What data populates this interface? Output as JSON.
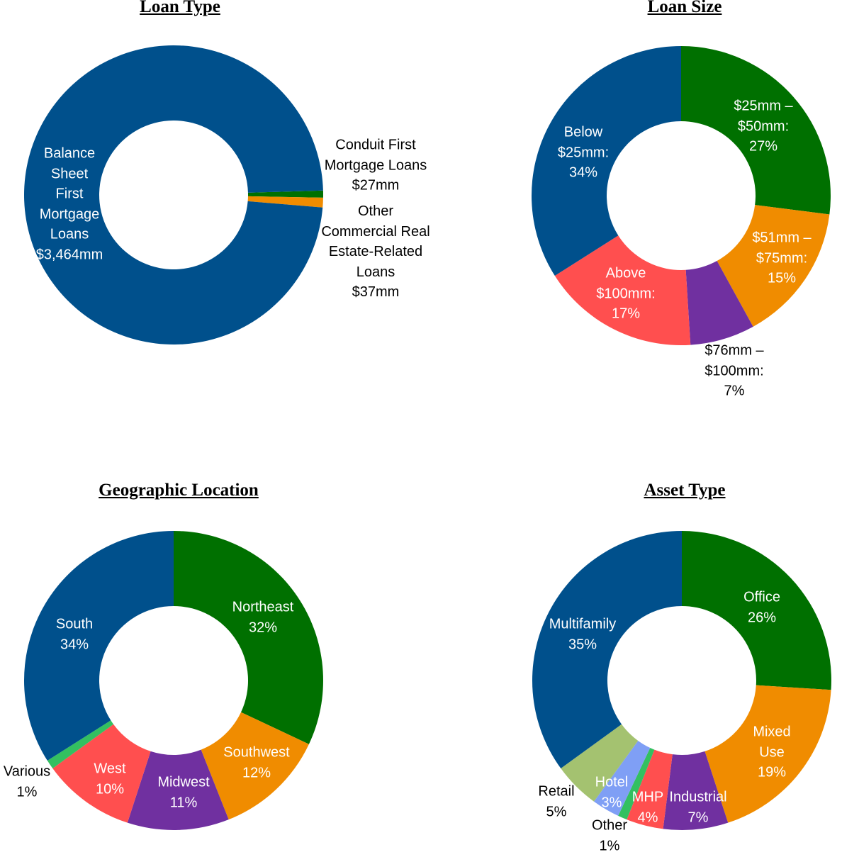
{
  "chart_data": [
    {
      "type": "pie",
      "donut": true,
      "title": "Loan Type",
      "slices": [
        {
          "name": "Conduit First Mortgage Loans",
          "label": "Conduit First\nMortgage Loans\n$27mm",
          "value": 27,
          "color": "#007000",
          "label_color": "#000000"
        },
        {
          "name": "Other Commercial Real Estate-Related Loans",
          "label": "Other\nCommercial Real\nEstate-Related\nLoans\n$37mm",
          "value": 37,
          "color": "#F08C00",
          "label_color": "#000000"
        },
        {
          "name": "Balance Sheet First Mortgage Loans",
          "label": "Balance\nSheet\nFirst\nMortgage\nLoans\n$3,464mm",
          "value": 3464,
          "color": "#00508C",
          "label_color": "#FFFFFF"
        }
      ]
    },
    {
      "type": "pie",
      "donut": true,
      "title": "Loan Size",
      "slices": [
        {
          "name": "$25mm – $50mm",
          "label": "$25mm –\n$50mm:\n27%",
          "value": 27,
          "color": "#007000",
          "label_color": "#FFFFFF"
        },
        {
          "name": "$51mm – $75mm",
          "label": "$51mm –\n$75mm:\n15%",
          "value": 15,
          "color": "#F08C00",
          "label_color": "#FFFFFF"
        },
        {
          "name": "$76mm – $100mm",
          "label": "$76mm –\n$100mm:\n7%",
          "value": 7,
          "color": "#7030A0",
          "label_color": "#000000"
        },
        {
          "name": "Above $100mm",
          "label": "Above\n$100mm:\n17%",
          "value": 17,
          "color": "#FF4F4F",
          "label_color": "#FFFFFF"
        },
        {
          "name": "Below $25mm",
          "label": "Below\n$25mm:\n34%",
          "value": 34,
          "color": "#00508C",
          "label_color": "#FFFFFF"
        }
      ]
    },
    {
      "type": "pie",
      "donut": true,
      "title": "Geographic Location",
      "slices": [
        {
          "name": "Northeast",
          "label": "Northeast\n32%",
          "value": 32,
          "color": "#007000",
          "label_color": "#FFFFFF"
        },
        {
          "name": "Southwest",
          "label": "Southwest\n12%",
          "value": 12,
          "color": "#F08C00",
          "label_color": "#FFFFFF"
        },
        {
          "name": "Midwest",
          "label": "Midwest\n11%",
          "value": 11,
          "color": "#7030A0",
          "label_color": "#FFFFFF"
        },
        {
          "name": "West",
          "label": "West\n10%",
          "value": 10,
          "color": "#FF4F4F",
          "label_color": "#FFFFFF"
        },
        {
          "name": "Various",
          "label": "Various\n1%",
          "value": 1,
          "color": "#33C060",
          "label_color": "#000000"
        },
        {
          "name": "South",
          "label": "South\n34%",
          "value": 34,
          "color": "#00508C",
          "label_color": "#FFFFFF"
        }
      ]
    },
    {
      "type": "pie",
      "donut": true,
      "title": "Asset Type",
      "slices": [
        {
          "name": "Office",
          "label": "Office\n26%",
          "value": 26,
          "color": "#007000",
          "label_color": "#FFFFFF"
        },
        {
          "name": "Mixed Use",
          "label": "Mixed\nUse\n19%",
          "value": 19,
          "color": "#F08C00",
          "label_color": "#FFFFFF"
        },
        {
          "name": "Industrial",
          "label": "Industrial\n7%",
          "value": 7,
          "color": "#7030A0",
          "label_color": "#FFFFFF"
        },
        {
          "name": "MHP",
          "label": "MHP\n4%",
          "value": 4,
          "color": "#FF4F4F",
          "label_color": "#FFFFFF"
        },
        {
          "name": "Other",
          "label": "Other\n1%",
          "value": 1,
          "color": "#33C060",
          "label_color": "#000000"
        },
        {
          "name": "Hotel",
          "label": "Hotel\n3%",
          "value": 3,
          "color": "#7F9FF5",
          "label_color": "#FFFFFF"
        },
        {
          "name": "Retail",
          "label": "Retail\n5%",
          "value": 5,
          "color": "#A4C270",
          "label_color": "#000000"
        },
        {
          "name": "Multifamily",
          "label": "Multifamily\n35%",
          "value": 35,
          "color": "#00508C",
          "label_color": "#FFFFFF"
        }
      ]
    }
  ]
}
